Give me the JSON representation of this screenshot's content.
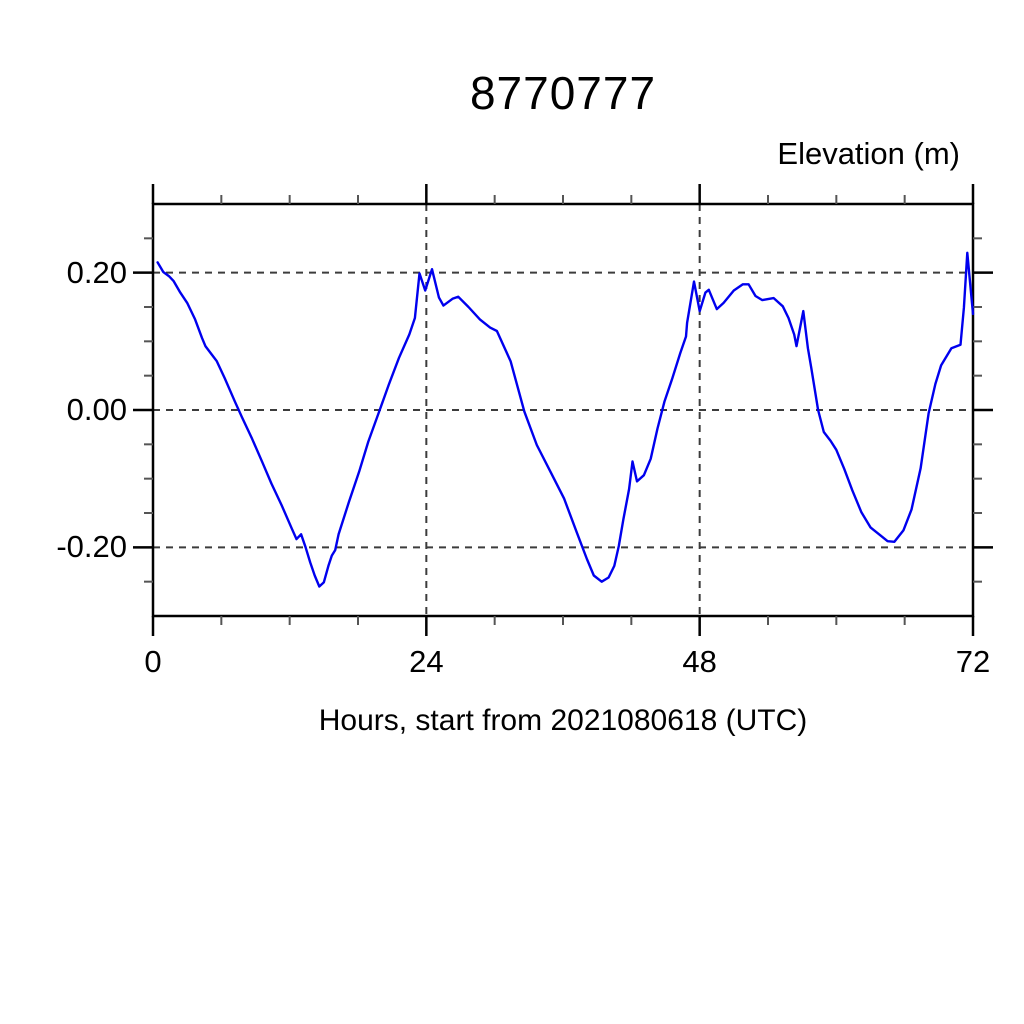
{
  "title": "8770777",
  "colors": {
    "line": "#0000ee",
    "grid": "#3c3c3c",
    "frame": "#000000",
    "background": "#ffffff",
    "text": "#000000"
  },
  "chart_data": {
    "type": "line",
    "title": "8770777",
    "ylabel": "Elevation (m)",
    "xlabel": "Hours, start from 2021080618 (UTC)",
    "xlim": [
      0,
      72
    ],
    "ylim": [
      -0.3,
      0.3
    ],
    "x_ticks_major": [
      0,
      24,
      48,
      72
    ],
    "x_tick_labels": [
      "0",
      "24",
      "48",
      "72"
    ],
    "x_minor_step": 6,
    "y_ticks_major": [
      -0.2,
      0.0,
      0.2
    ],
    "y_tick_labels": [
      "-0.20",
      "0.00",
      "0.20"
    ],
    "y_minor_step": 0.05,
    "grid": "dashed lines at major ticks, both axes",
    "legend": "none",
    "series": [
      {
        "name": "elevation",
        "color": "#0000ee",
        "points": [
          [
            0.4,
            0.215
          ],
          [
            0.9,
            0.201
          ],
          [
            1.4,
            0.195
          ],
          [
            1.8,
            0.188
          ],
          [
            2.4,
            0.171
          ],
          [
            3.0,
            0.156
          ],
          [
            3.7,
            0.132
          ],
          [
            4.3,
            0.105
          ],
          [
            4.6,
            0.093
          ],
          [
            5.2,
            0.08
          ],
          [
            5.6,
            0.071
          ],
          [
            6.3,
            0.046
          ],
          [
            7.2,
            0.012
          ],
          [
            7.8,
            -0.01
          ],
          [
            8.7,
            -0.042
          ],
          [
            9.6,
            -0.076
          ],
          [
            10.4,
            -0.107
          ],
          [
            11.3,
            -0.139
          ],
          [
            12.2,
            -0.173
          ],
          [
            12.6,
            -0.188
          ],
          [
            13.0,
            -0.181
          ],
          [
            13.4,
            -0.2
          ],
          [
            13.8,
            -0.222
          ],
          [
            14.2,
            -0.241
          ],
          [
            14.6,
            -0.257
          ],
          [
            15.0,
            -0.251
          ],
          [
            15.4,
            -0.227
          ],
          [
            15.7,
            -0.212
          ],
          [
            16.0,
            -0.204
          ],
          [
            16.3,
            -0.181
          ],
          [
            17.2,
            -0.134
          ],
          [
            18.1,
            -0.09
          ],
          [
            18.9,
            -0.046
          ],
          [
            19.8,
            -0.005
          ],
          [
            20.7,
            0.037
          ],
          [
            21.6,
            0.076
          ],
          [
            22.5,
            0.11
          ],
          [
            23.0,
            0.134
          ],
          [
            23.4,
            0.199
          ],
          [
            23.9,
            0.174
          ],
          [
            24.5,
            0.205
          ],
          [
            25.1,
            0.164
          ],
          [
            25.5,
            0.152
          ],
          [
            26.3,
            0.162
          ],
          [
            26.8,
            0.165
          ],
          [
            27.7,
            0.15
          ],
          [
            28.7,
            0.132
          ],
          [
            29.6,
            0.12
          ],
          [
            30.2,
            0.115
          ],
          [
            31.4,
            0.071
          ],
          [
            32.6,
            -0.002
          ],
          [
            33.7,
            -0.051
          ],
          [
            34.9,
            -0.09
          ],
          [
            36.1,
            -0.129
          ],
          [
            37.2,
            -0.178
          ],
          [
            38.1,
            -0.217
          ],
          [
            38.7,
            -0.241
          ],
          [
            39.4,
            -0.25
          ],
          [
            40.0,
            -0.244
          ],
          [
            40.5,
            -0.227
          ],
          [
            40.9,
            -0.198
          ],
          [
            41.3,
            -0.159
          ],
          [
            41.8,
            -0.115
          ],
          [
            42.1,
            -0.075
          ],
          [
            42.5,
            -0.104
          ],
          [
            43.1,
            -0.095
          ],
          [
            43.7,
            -0.071
          ],
          [
            44.3,
            -0.027
          ],
          [
            44.9,
            0.012
          ],
          [
            45.6,
            0.046
          ],
          [
            46.3,
            0.083
          ],
          [
            46.8,
            0.107
          ],
          [
            46.9,
            0.127
          ],
          [
            47.5,
            0.187
          ],
          [
            48.0,
            0.144
          ],
          [
            48.5,
            0.171
          ],
          [
            48.8,
            0.175
          ],
          [
            49.5,
            0.147
          ],
          [
            50.1,
            0.156
          ],
          [
            51.0,
            0.174
          ],
          [
            51.8,
            0.183
          ],
          [
            52.3,
            0.183
          ],
          [
            52.9,
            0.166
          ],
          [
            53.5,
            0.16
          ],
          [
            54.5,
            0.163
          ],
          [
            55.3,
            0.151
          ],
          [
            55.8,
            0.134
          ],
          [
            56.3,
            0.11
          ],
          [
            56.5,
            0.093
          ],
          [
            57.1,
            0.144
          ],
          [
            57.5,
            0.09
          ],
          [
            57.8,
            0.061
          ],
          [
            58.4,
            0.0
          ],
          [
            58.9,
            -0.032
          ],
          [
            59.5,
            -0.045
          ],
          [
            60.0,
            -0.058
          ],
          [
            60.7,
            -0.086
          ],
          [
            61.4,
            -0.117
          ],
          [
            62.2,
            -0.149
          ],
          [
            63.0,
            -0.171
          ],
          [
            63.9,
            -0.183
          ],
          [
            64.5,
            -0.191
          ],
          [
            65.1,
            -0.192
          ],
          [
            65.9,
            -0.175
          ],
          [
            66.6,
            -0.145
          ],
          [
            67.4,
            -0.085
          ],
          [
            68.1,
            -0.005
          ],
          [
            68.7,
            0.038
          ],
          [
            69.2,
            0.065
          ],
          [
            70.1,
            0.09
          ],
          [
            70.9,
            0.095
          ],
          [
            71.2,
            0.149
          ],
          [
            71.5,
            0.229
          ],
          [
            72.0,
            0.14
          ]
        ]
      }
    ]
  }
}
